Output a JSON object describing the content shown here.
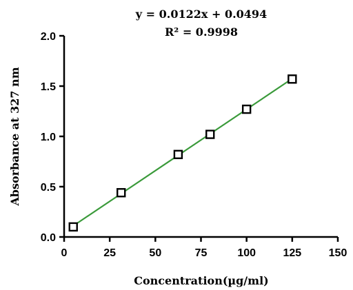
{
  "chart_data": {
    "type": "scatter",
    "title": "",
    "annotations": {
      "equation": "y = 0.0122x + 0.0494",
      "r_squared": "R² = 0.9998"
    },
    "xlabel": "Concentration(µg/ml)",
    "ylabel": "Absorbance at 327  nm",
    "xlim": [
      0,
      150
    ],
    "ylim": [
      0,
      2.0
    ],
    "x_ticks": [
      0,
      25,
      50,
      75,
      100,
      125,
      150
    ],
    "y_ticks": [
      0.0,
      0.5,
      1.0,
      1.5,
      2.0
    ],
    "x_tick_labels": [
      "0",
      "25",
      "50",
      "75",
      "100",
      "125",
      "150"
    ],
    "y_tick_labels": [
      "0.0",
      "0.5",
      "1.0",
      "1.5",
      "2.0"
    ],
    "grid": false,
    "series": [
      {
        "x": [
          5,
          31.25,
          62.5,
          80,
          100,
          125
        ],
        "y": [
          0.1,
          0.44,
          0.82,
          1.02,
          1.27,
          1.57
        ],
        "marker": "square-open",
        "marker_color": "#000000"
      }
    ],
    "fit_line": {
      "slope": 0.0122,
      "intercept": 0.0494,
      "x_range": [
        5,
        125
      ],
      "color": "#3a9a3a"
    }
  }
}
